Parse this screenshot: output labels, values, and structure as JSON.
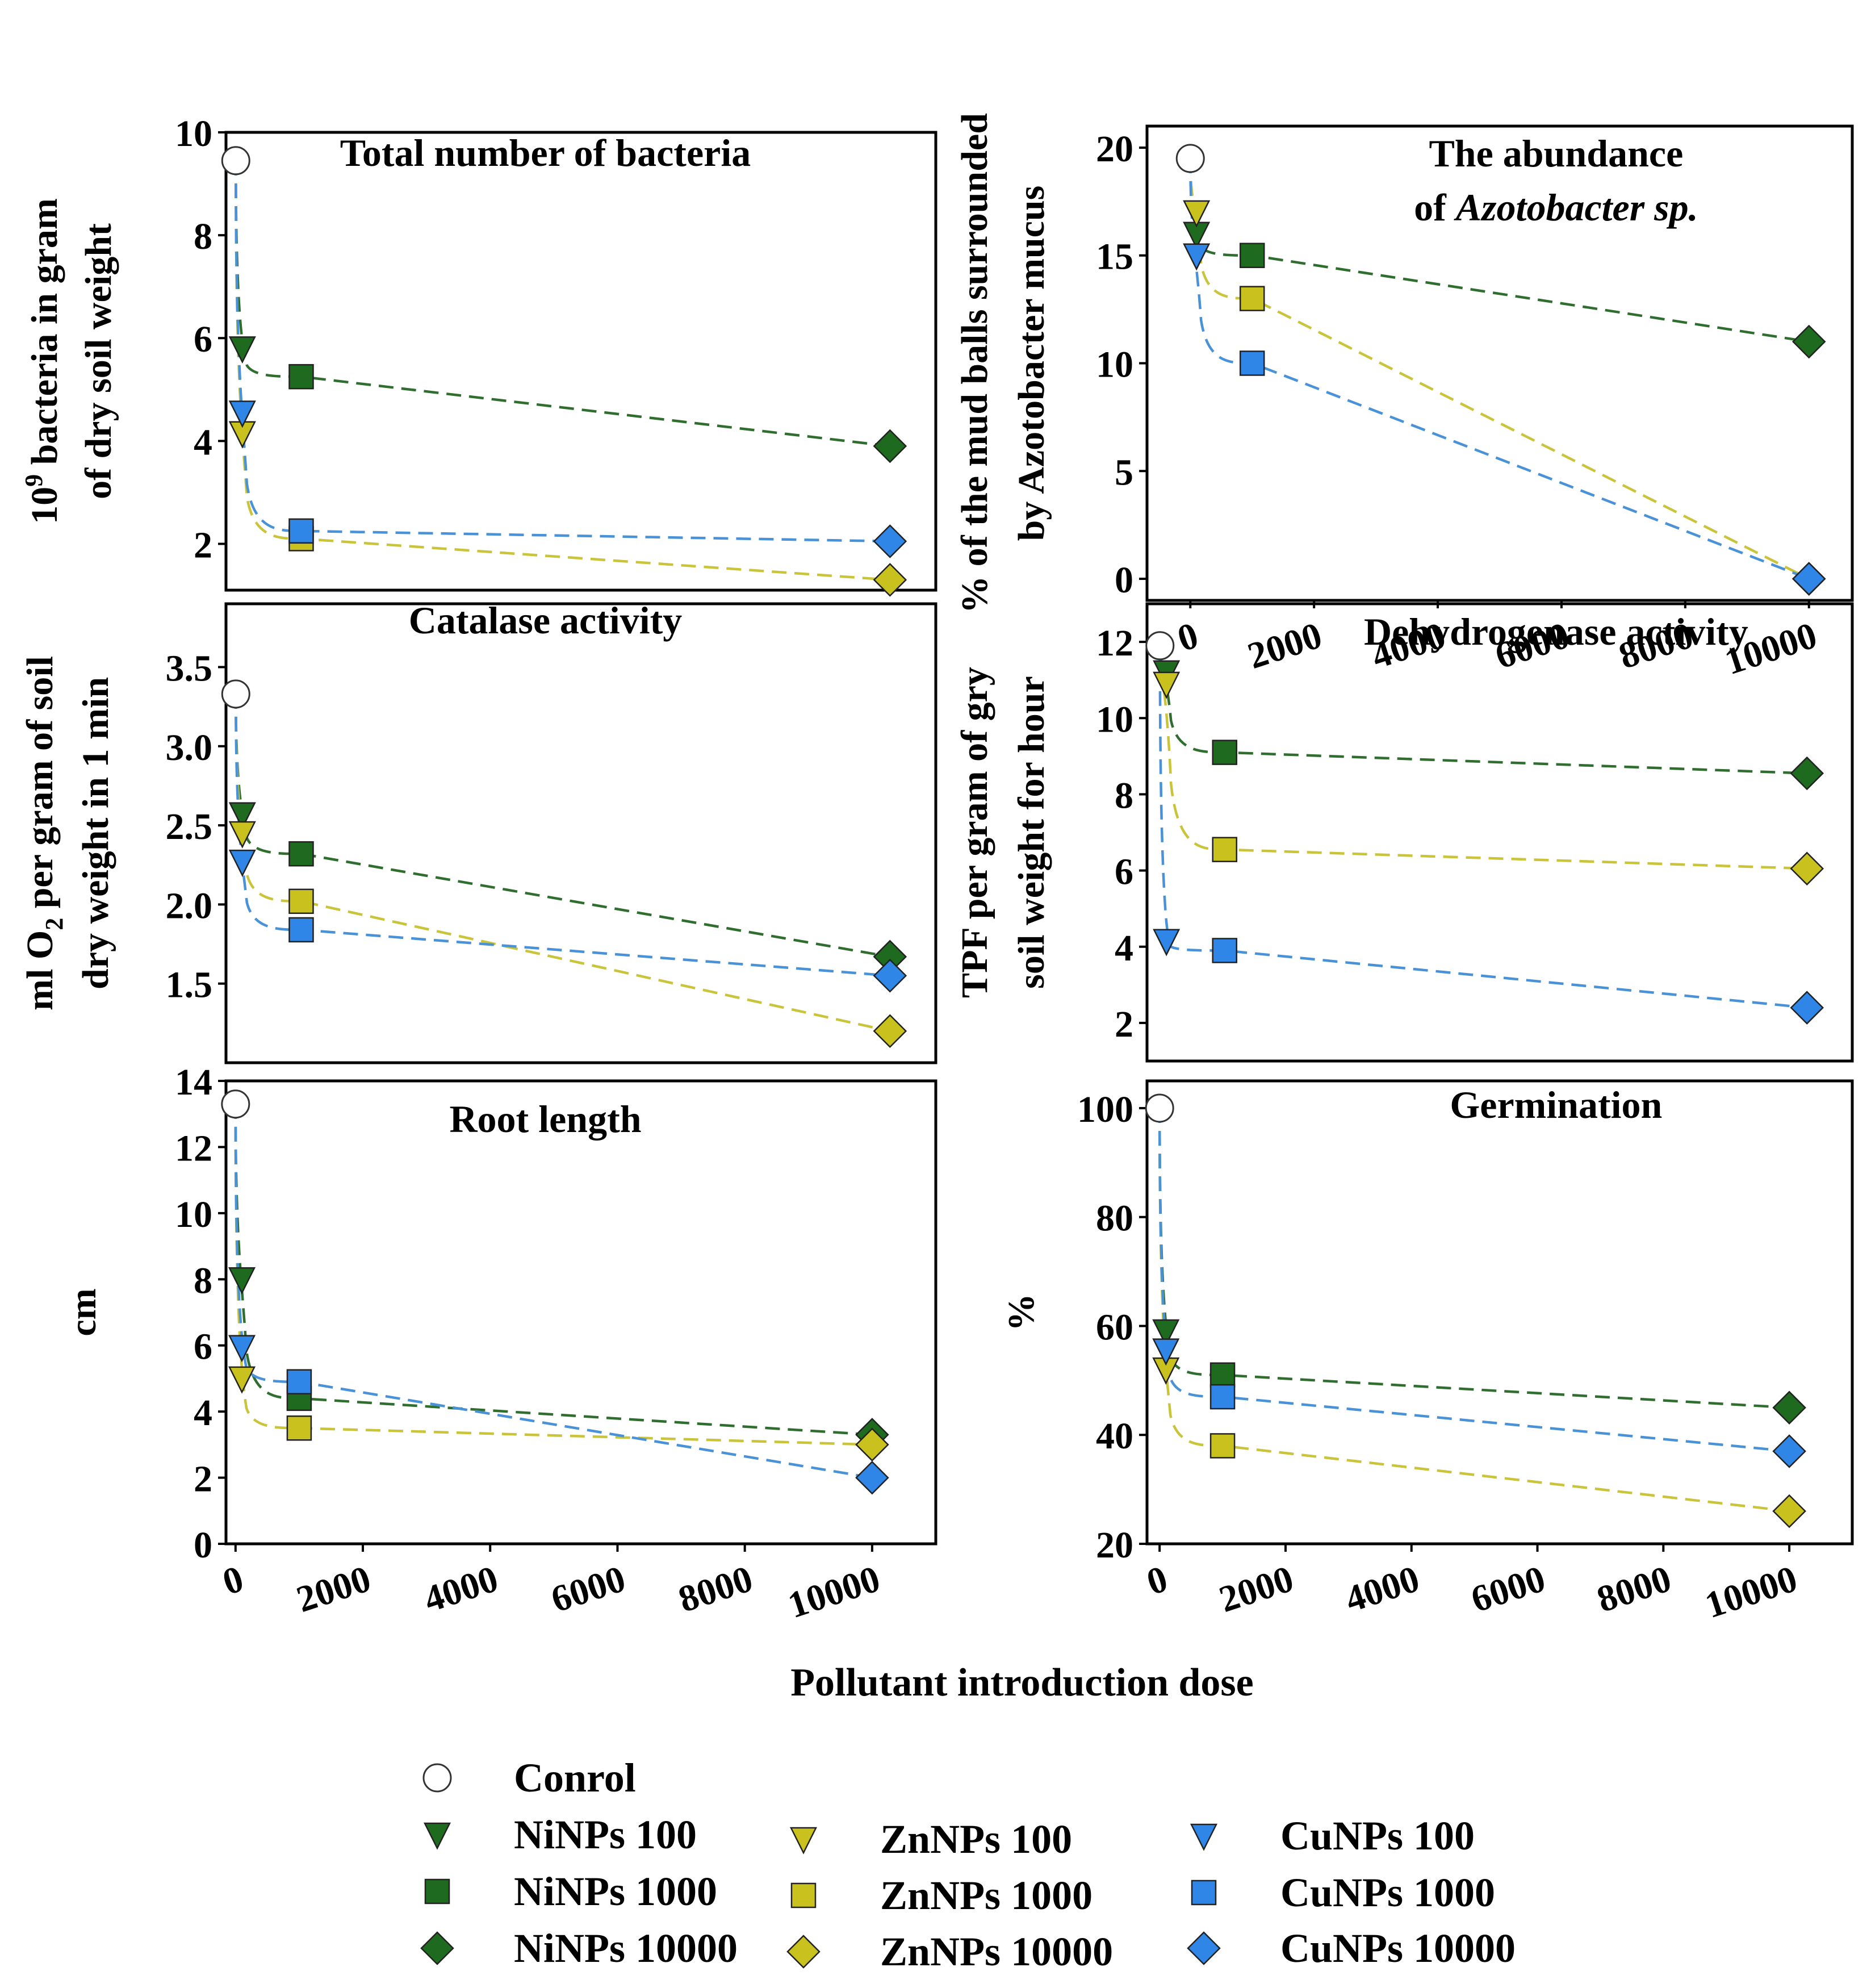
{
  "figure_xlabel": "Pollutant introduction dose",
  "colors": {
    "ni": "#1e6a1e",
    "zn": "#c9c21e",
    "cu": "#2f86e6",
    "ni_line": "#2f6e2f",
    "zn_line": "#c9c43a",
    "cu_line": "#4a92d8"
  },
  "legend": {
    "items": [
      {
        "label": "Conrol",
        "marker": "circle",
        "group": "control"
      },
      {
        "label": "NiNPs 100",
        "marker": "triangle-down",
        "group": "ni"
      },
      {
        "label": "NiNPs 1000",
        "marker": "square",
        "group": "ni"
      },
      {
        "label": "NiNPs 10000",
        "marker": "diamond",
        "group": "ni"
      },
      {
        "label": "ZnNPs 100",
        "marker": "triangle-down",
        "group": "zn"
      },
      {
        "label": "ZnNPs 1000",
        "marker": "square",
        "group": "zn"
      },
      {
        "label": "ZnNPs 10000",
        "marker": "diamond",
        "group": "zn"
      },
      {
        "label": "CuNPs 100",
        "marker": "triangle-down",
        "group": "cu"
      },
      {
        "label": "CuNPs 1000",
        "marker": "square",
        "group": "cu"
      },
      {
        "label": "CuNPs 10000",
        "marker": "diamond",
        "group": "cu"
      }
    ]
  },
  "chart_data": [
    {
      "type": "line",
      "title": [
        "Total number of bacteria"
      ],
      "ylabel": [
        "bacteria in gram",
        "of dry soil weight"
      ],
      "ylabel_prefix": "10",
      "ylabel_sup": "9",
      "yticks": [
        2,
        4,
        6,
        8,
        10
      ],
      "ylim": [
        1.1,
        10
      ],
      "xlim": [
        -150,
        10700
      ],
      "xticks": [],
      "control": {
        "x": 0,
        "y": 9.45
      },
      "series": [
        {
          "name": "NiNPs",
          "group": "ni",
          "x": [
            100,
            1000,
            10000
          ],
          "y": [
            5.8,
            5.25,
            3.9
          ]
        },
        {
          "name": "ZnNPs",
          "group": "zn",
          "x": [
            100,
            1000,
            10000
          ],
          "y": [
            4.15,
            2.1,
            1.3
          ]
        },
        {
          "name": "CuNPs",
          "group": "cu",
          "x": [
            100,
            1000,
            10000
          ],
          "y": [
            4.55,
            2.25,
            2.05
          ]
        }
      ]
    },
    {
      "type": "line",
      "title": [
        "The abundance",
        "of Azotobacter sp."
      ],
      "ylabel": [
        "% of the mud balls surrounded",
        "by Azotobacter mucus"
      ],
      "yticks": [
        0,
        5,
        10,
        15,
        20
      ],
      "ylim": [
        -1,
        21
      ],
      "xlim": [
        -700,
        10700
      ],
      "xticks": [
        0,
        2000,
        4000,
        6000,
        8000,
        10000
      ],
      "control": {
        "x": 0,
        "y": 19.5
      },
      "series": [
        {
          "name": "NiNPs",
          "group": "ni",
          "x": [
            100,
            1000,
            10000
          ],
          "y": [
            16,
            15,
            11
          ]
        },
        {
          "name": "ZnNPs",
          "group": "zn",
          "x": [
            100,
            1000,
            10000
          ],
          "y": [
            17,
            13,
            0
          ]
        },
        {
          "name": "CuNPs",
          "group": "cu",
          "x": [
            100,
            1000,
            10000
          ],
          "y": [
            15,
            10,
            0
          ]
        }
      ]
    },
    {
      "type": "line",
      "title": [
        "Catalase activity"
      ],
      "ylabel": [
        "per gram of soil",
        "dry weight in 1 min"
      ],
      "ylabel_prefix": "ml O",
      "ylabel_sub": "2",
      "yticks": [
        1.5,
        2.0,
        2.5,
        3.0,
        3.5
      ],
      "ytick_labels": [
        "1.5",
        "2.0",
        "2.5",
        "3.0",
        "3.5"
      ],
      "ylim": [
        1.0,
        3.9
      ],
      "xlim": [
        -150,
        10700
      ],
      "xticks": [],
      "control": {
        "x": 0,
        "y": 3.33
      },
      "series": [
        {
          "name": "NiNPs",
          "group": "ni",
          "x": [
            100,
            1000,
            10000
          ],
          "y": [
            2.57,
            2.32,
            1.67
          ]
        },
        {
          "name": "ZnNPs",
          "group": "zn",
          "x": [
            100,
            1000,
            10000
          ],
          "y": [
            2.45,
            2.02,
            1.2
          ]
        },
        {
          "name": "CuNPs",
          "group": "cu",
          "x": [
            100,
            1000,
            10000
          ],
          "y": [
            2.27,
            1.84,
            1.55
          ]
        }
      ]
    },
    {
      "type": "line",
      "title": [
        "Dehydrogenase activity"
      ],
      "ylabel": [
        "TPF per gram of gry",
        "soil weight for hour"
      ],
      "yticks": [
        2,
        4,
        6,
        8,
        10,
        12
      ],
      "ylim": [
        1,
        13
      ],
      "xlim": [
        -200,
        10700
      ],
      "xticks": [],
      "control": {
        "x": 0,
        "y": 11.9
      },
      "series": [
        {
          "name": "NiNPs",
          "group": "ni",
          "x": [
            100,
            1000,
            10000
          ],
          "y": [
            11.2,
            9.1,
            8.55
          ]
        },
        {
          "name": "ZnNPs",
          "group": "zn",
          "x": [
            100,
            1000,
            10000
          ],
          "y": [
            10.9,
            6.55,
            6.05
          ]
        },
        {
          "name": "CuNPs",
          "group": "cu",
          "x": [
            100,
            1000,
            10000
          ],
          "y": [
            4.15,
            3.9,
            2.4
          ]
        }
      ]
    },
    {
      "type": "line",
      "title": [
        "Root length"
      ],
      "ylabel": [
        "cm"
      ],
      "yticks": [
        0,
        2,
        4,
        6,
        8,
        10,
        12,
        14
      ],
      "ylim": [
        0,
        14
      ],
      "xlim": [
        -150,
        11000
      ],
      "xticks": [
        0,
        2000,
        4000,
        6000,
        8000,
        10000
      ],
      "control": {
        "x": 0,
        "y": 13.3
      },
      "series": [
        {
          "name": "NiNPs",
          "group": "ni",
          "x": [
            100,
            1000,
            10000
          ],
          "y": [
            8.0,
            4.4,
            3.3
          ]
        },
        {
          "name": "ZnNPs",
          "group": "zn",
          "x": [
            100,
            1000,
            10000
          ],
          "y": [
            5.0,
            3.5,
            3.0
          ]
        },
        {
          "name": "CuNPs",
          "group": "cu",
          "x": [
            100,
            1000,
            10000
          ],
          "y": [
            5.95,
            4.9,
            2.0
          ]
        }
      ]
    },
    {
      "type": "line",
      "title": [
        "Germination"
      ],
      "ylabel": [
        "%"
      ],
      "yticks": [
        20,
        40,
        60,
        80,
        100
      ],
      "ylim": [
        20,
        105
      ],
      "xlim": [
        -200,
        11000
      ],
      "xticks": [
        0,
        2000,
        4000,
        6000,
        8000,
        10000
      ],
      "control": {
        "x": 0,
        "y": 100
      },
      "series": [
        {
          "name": "NiNPs",
          "group": "ni",
          "x": [
            100,
            1000,
            10000
          ],
          "y": [
            59,
            51,
            45
          ]
        },
        {
          "name": "ZnNPs",
          "group": "zn",
          "x": [
            100,
            1000,
            10000
          ],
          "y": [
            52,
            38,
            26
          ]
        },
        {
          "name": "CuNPs",
          "group": "cu",
          "x": [
            100,
            1000,
            10000
          ],
          "y": [
            55.5,
            47,
            37
          ]
        }
      ]
    }
  ]
}
